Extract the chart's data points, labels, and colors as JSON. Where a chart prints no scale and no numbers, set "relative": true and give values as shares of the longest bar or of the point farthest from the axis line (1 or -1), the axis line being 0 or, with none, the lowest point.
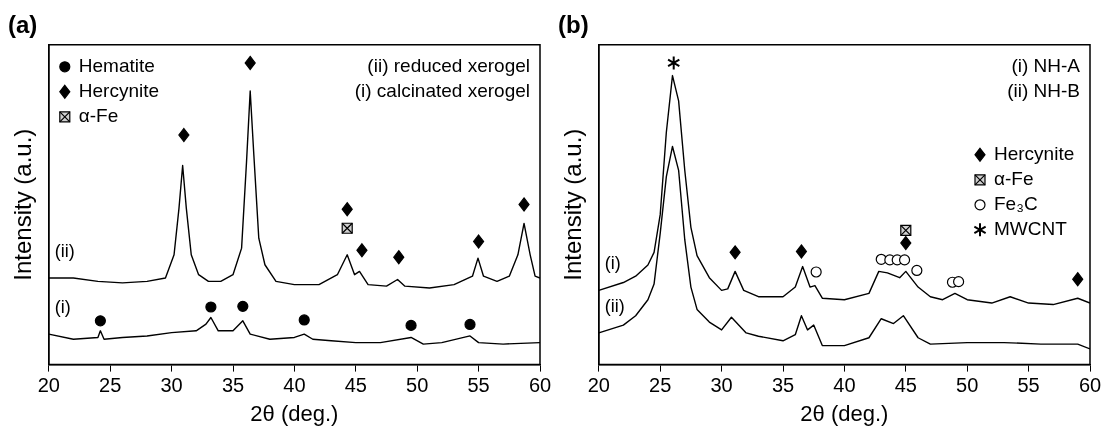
{
  "chart_data": [
    {
      "type": "line",
      "title": "(a)",
      "xlabel": "2θ (deg.)",
      "ylabel": "Intensity (a.u.)",
      "relative": true,
      "xlim": [
        20,
        60
      ],
      "xticks": [
        20,
        25,
        30,
        35,
        40,
        45,
        50,
        55,
        60
      ],
      "legend": "top left",
      "annotations": [
        "(ii) reduced xerogel",
        "(i) calcinated xerogel"
      ],
      "series": [
        {
          "name": "(ii)",
          "color": "#000000",
          "x": [
            20,
            22,
            24,
            26,
            28,
            29.5,
            30.2,
            30.6,
            30.9,
            31.2,
            31.6,
            32.2,
            33,
            34,
            35,
            35.7,
            36.1,
            36.4,
            36.7,
            37.1,
            37.6,
            38.5,
            40,
            42,
            43.5,
            44.3,
            44.9,
            45.3,
            46,
            47.5,
            48.4,
            49,
            51,
            53,
            54.5,
            54.95,
            55.4,
            56.5,
            57.5,
            58.2,
            58.7,
            59.2,
            59.6,
            60
          ],
          "values": [
            0.287,
            0.287,
            0.276,
            0.271,
            0.276,
            0.287,
            0.364,
            0.518,
            0.66,
            0.518,
            0.364,
            0.298,
            0.276,
            0.276,
            0.298,
            0.386,
            0.671,
            0.907,
            0.693,
            0.419,
            0.331,
            0.276,
            0.265,
            0.265,
            0.298,
            0.364,
            0.298,
            0.309,
            0.265,
            0.26,
            0.282,
            0.26,
            0.254,
            0.265,
            0.293,
            0.353,
            0.293,
            0.276,
            0.293,
            0.364,
            0.468,
            0.364,
            0.293,
            0.287
          ]
        },
        {
          "name": "(i)",
          "color": "#000000",
          "x": [
            20,
            22,
            24,
            24.2,
            24.5,
            26,
            28,
            30,
            32,
            32.8,
            33.2,
            33.8,
            35,
            35.8,
            36.4,
            38,
            40,
            40.8,
            41.5,
            43,
            45,
            47,
            49.5,
            50.5,
            52,
            54.3,
            55,
            57,
            60
          ],
          "values": [
            0.101,
            0.084,
            0.09,
            0.112,
            0.084,
            0.09,
            0.095,
            0.106,
            0.112,
            0.134,
            0.156,
            0.112,
            0.112,
            0.145,
            0.101,
            0.084,
            0.09,
            0.101,
            0.084,
            0.079,
            0.073,
            0.073,
            0.09,
            0.068,
            0.073,
            0.095,
            0.073,
            0.068,
            0.073
          ]
        },
        {
          "name": "Hematite",
          "type": "scatter",
          "marker": "circle",
          "color": "#000000",
          "x": [
            24.2,
            33.2,
            35.8,
            40.8,
            49.5,
            54.3
          ],
          "values": [
            0.145,
            0.191,
            0.193,
            0.148,
            0.13,
            0.133
          ]
        },
        {
          "name": "Hercynite",
          "type": "scatter",
          "marker": "diamond",
          "color": "#000000",
          "x": [
            31,
            36.4,
            44.3,
            45.5,
            48.5,
            55,
            58.7
          ],
          "values": [
            0.761,
            1,
            0.515,
            0.379,
            0.356,
            0.408,
            0.531
          ]
        },
        {
          "name": "α-Fe",
          "type": "scatter",
          "marker": "square",
          "color": "#d0d0d0",
          "x": [
            44.3
          ],
          "values": [
            0.452
          ]
        }
      ]
    },
    {
      "type": "line",
      "title": "(b)",
      "xlabel": "2θ (deg.)",
      "ylabel": "Intensity (a.u.)",
      "relative": true,
      "xlim": [
        20,
        60
      ],
      "xticks": [
        20,
        25,
        30,
        35,
        40,
        45,
        50,
        55,
        60
      ],
      "legend": "right",
      "annotations": [
        "(i) NH-A",
        "(ii) NH-B"
      ],
      "series": [
        {
          "name": "(i)",
          "color": "#000000",
          "x": [
            20,
            22,
            23,
            24,
            24.5,
            25,
            25.5,
            26,
            26.5,
            27,
            27.5,
            28,
            29,
            30,
            30.5,
            31.1,
            31.8,
            33,
            35,
            36,
            36.6,
            37.2,
            37.6,
            38.2,
            40,
            42,
            42.8,
            43.5,
            44.5,
            45,
            46,
            47,
            48,
            49,
            50,
            52,
            53.5,
            55,
            57,
            59,
            60
          ],
          "values": [
            0.246,
            0.272,
            0.293,
            0.33,
            0.372,
            0.497,
            0.77,
            0.958,
            0.874,
            0.644,
            0.455,
            0.361,
            0.288,
            0.246,
            0.251,
            0.309,
            0.246,
            0.225,
            0.225,
            0.257,
            0.325,
            0.257,
            0.262,
            0.22,
            0.215,
            0.236,
            0.309,
            0.304,
            0.288,
            0.309,
            0.257,
            0.225,
            0.215,
            0.236,
            0.215,
            0.204,
            0.225,
            0.204,
            0.199,
            0.22,
            0.204
          ]
        },
        {
          "name": "(ii)",
          "color": "#000000",
          "x": [
            20,
            22,
            23,
            24,
            24.5,
            25,
            25.5,
            26,
            26.5,
            27,
            27.5,
            28,
            29,
            30,
            30.8,
            32,
            33,
            35,
            36,
            36.5,
            37,
            37.5,
            38.2,
            40,
            42,
            43,
            44,
            44.8,
            46,
            47,
            50,
            53,
            56,
            59,
            60
          ],
          "values": [
            0.105,
            0.131,
            0.162,
            0.215,
            0.267,
            0.435,
            0.623,
            0.723,
            0.644,
            0.414,
            0.257,
            0.183,
            0.141,
            0.115,
            0.157,
            0.105,
            0.094,
            0.079,
            0.099,
            0.162,
            0.115,
            0.131,
            0.063,
            0.063,
            0.089,
            0.152,
            0.136,
            0.162,
            0.089,
            0.068,
            0.073,
            0.073,
            0.068,
            0.068,
            0.052
          ]
        },
        {
          "name": "Hercynite",
          "type": "scatter",
          "marker": "diamond",
          "color": "#000000",
          "x": [
            31.1,
            36.5,
            45,
            59
          ],
          "values": [
            0.372,
            0.375,
            0.403,
            0.283
          ]
        },
        {
          "name": "α-Fe",
          "type": "scatter",
          "marker": "square",
          "color": "#d0d0d0",
          "x": [
            45
          ],
          "values": [
            0.445
          ]
        },
        {
          "name": "Fe₃C",
          "type": "scatter",
          "marker": "circle",
          "color": "#ffffff",
          "x": [
            37.7,
            43,
            43.7,
            44.3,
            44.9,
            45.9,
            48.8,
            49.3
          ],
          "values": [
            0.307,
            0.349,
            0.347,
            0.347,
            0.347,
            0.312,
            0.273,
            0.275
          ]
        },
        {
          "name": "MWCNT",
          "type": "scatter",
          "marker": "cross",
          "color": "#000000",
          "x": [
            26.1
          ],
          "values": [
            1
          ]
        }
      ]
    }
  ]
}
